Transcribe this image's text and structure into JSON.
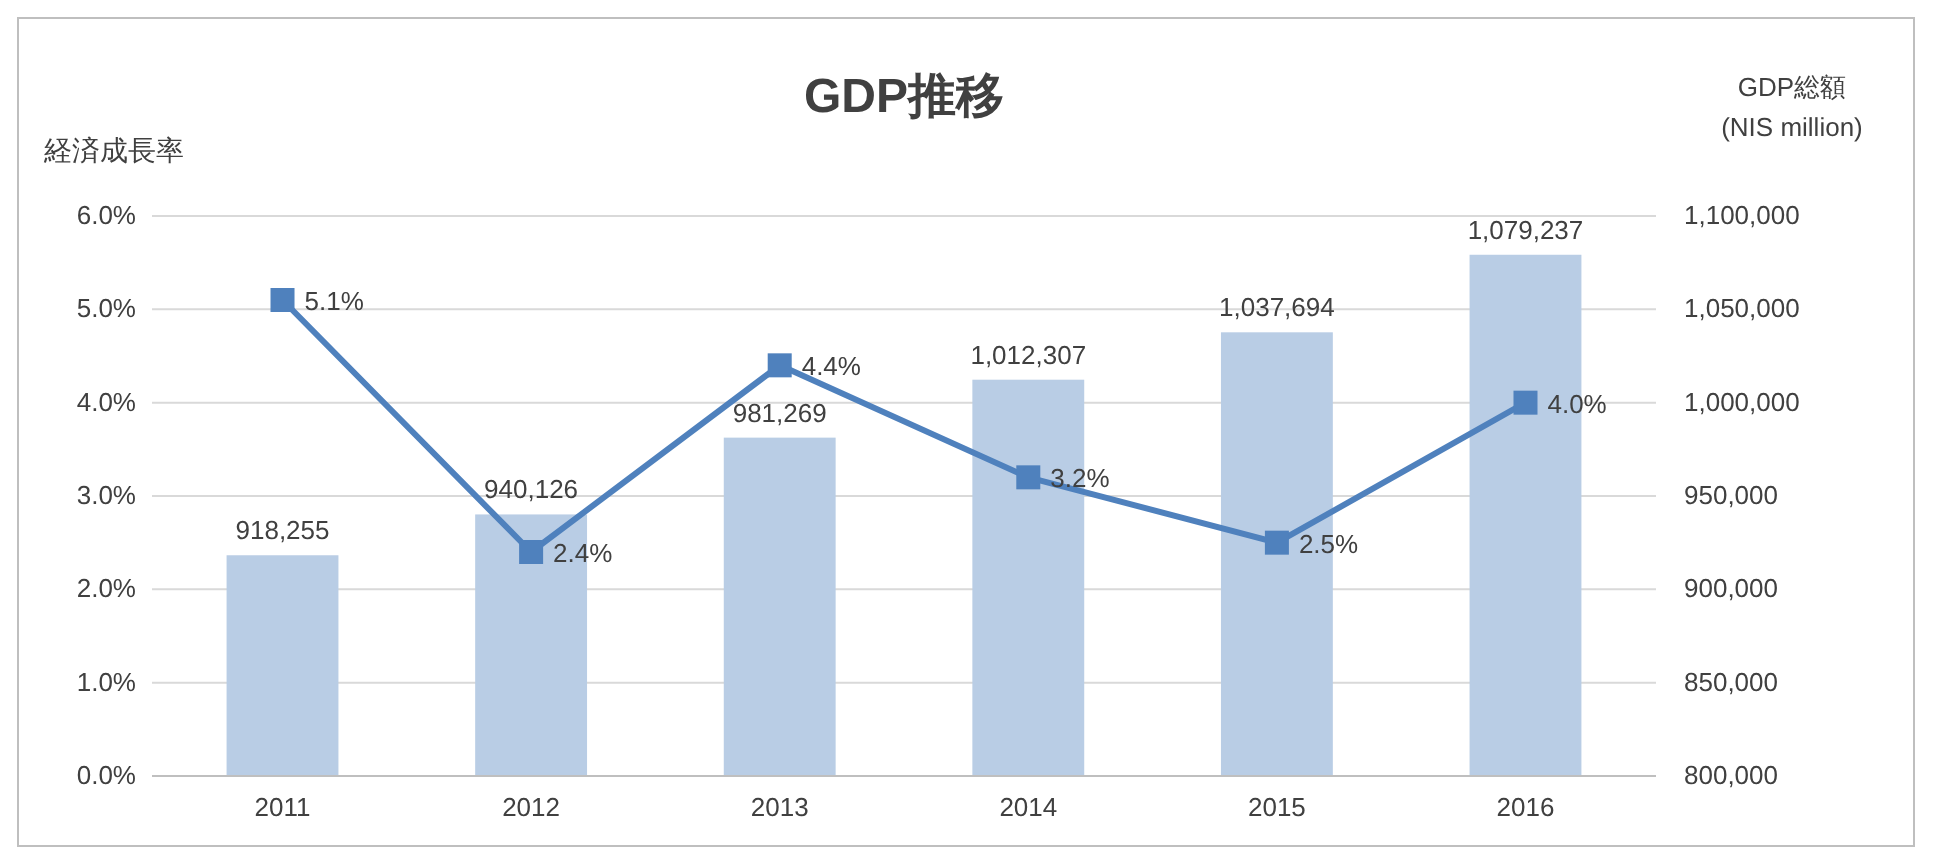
{
  "chart_data": {
    "type": "bar",
    "title": "GDP推移",
    "ylabel": "経済成長率",
    "y2label": "GDP総額\n(NIS million)",
    "categories": [
      "2011",
      "2012",
      "2013",
      "2014",
      "2015",
      "2016"
    ],
    "series": [
      {
        "axis": "y2",
        "color": "#b9cde5",
        "values": [
          918255,
          940126,
          981269,
          1012307,
          1037694,
          1079237
        ],
        "value_labels": [
          "918,255",
          "940,126",
          "981,269",
          "1,012,307",
          "1,037,694",
          "1,079,237"
        ]
      },
      {
        "type": "line",
        "axis": "y",
        "color": "#4f81bd",
        "marker": "square",
        "values": [
          5.1,
          2.4,
          4.4,
          3.2,
          2.5,
          4.0
        ],
        "value_labels": [
          "5.1%",
          "2.4%",
          "4.4%",
          "3.2%",
          "2.5%",
          "4.0%"
        ]
      }
    ],
    "ylim": [
      0,
      6
    ],
    "yticks": [
      {
        "value": 0,
        "label": "0.0%"
      },
      {
        "value": 1,
        "label": "1.0%"
      },
      {
        "value": 2,
        "label": "2.0%"
      },
      {
        "value": 3,
        "label": "3.0%"
      },
      {
        "value": 4,
        "label": "4.0%"
      },
      {
        "value": 5,
        "label": "5.0%"
      },
      {
        "value": 6,
        "label": "6.0%"
      }
    ],
    "y2lim": [
      800000,
      1100000
    ],
    "y2ticks": [
      {
        "value": 800000,
        "label": "800,000"
      },
      {
        "value": 850000,
        "label": "850,000"
      },
      {
        "value": 900000,
        "label": "900,000"
      },
      {
        "value": 950000,
        "label": "950,000"
      },
      {
        "value": 1000000,
        "label": "1,000,000"
      },
      {
        "value": 1050000,
        "label": "1,050,000"
      },
      {
        "value": 1100000,
        "label": "1,100,000"
      }
    ],
    "grid": "y"
  }
}
